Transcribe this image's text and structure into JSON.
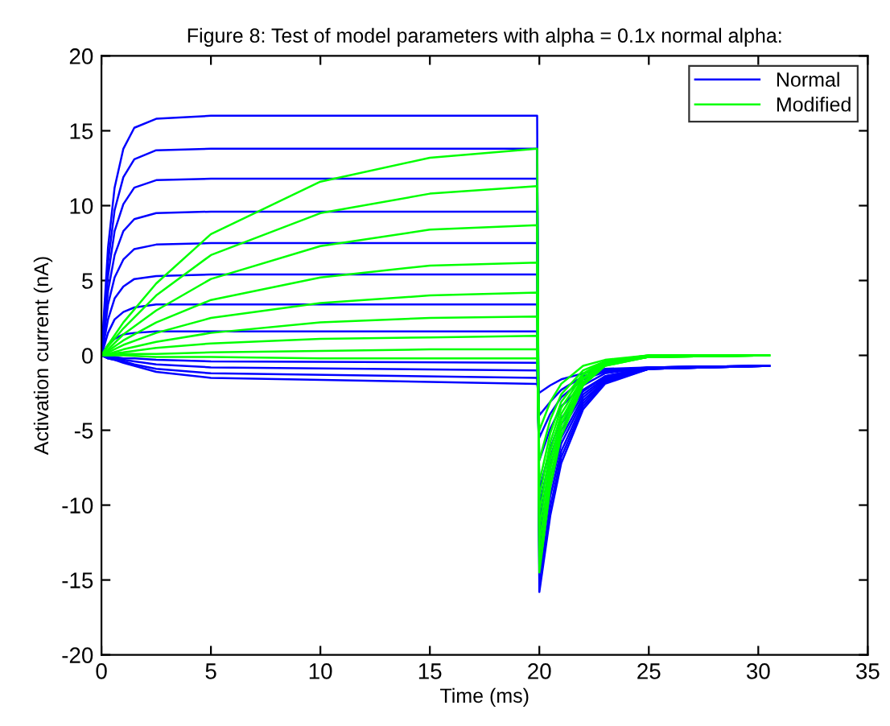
{
  "chart_data": {
    "type": "line",
    "title": "Figure 8: Test of model parameters with alpha = 0.1x normal alpha:",
    "xlabel": "Time (ms)",
    "ylabel": "Activation current (nA)",
    "xlim": [
      0,
      35
    ],
    "ylim": [
      -20,
      20
    ],
    "xticks": [
      0,
      5,
      10,
      15,
      20,
      25,
      30,
      35
    ],
    "yticks": [
      -20,
      -15,
      -10,
      -5,
      0,
      5,
      10,
      15,
      20
    ],
    "legend": "top right",
    "marker": "none",
    "line_style": "solid",
    "x": [
      0,
      0.3,
      0.6,
      1,
      1.5,
      2.5,
      5,
      19.9,
      20,
      20.5,
      21,
      22,
      23,
      25,
      30.5
    ],
    "series": [
      {
        "name": "Normal",
        "color": "#0000ff",
        "values": [
          0,
          7.2,
          11.2,
          13.8,
          15.2,
          15.8,
          16,
          16,
          -15.8,
          -10.7,
          -7.2,
          -3.6,
          -1.9,
          -0.9,
          -0.7
        ]
      },
      {
        "color": "#0000ff",
        "values": [
          0,
          6.2,
          9.7,
          11.9,
          13.1,
          13.7,
          13.8,
          13.8,
          -15,
          -10.1,
          -6.8,
          -3.4,
          -1.8,
          -0.9,
          -0.7
        ]
      },
      {
        "color": "#0000ff",
        "values": [
          0,
          5.3,
          8.3,
          10.1,
          11.2,
          11.7,
          11.8,
          11.8,
          -14,
          -9.4,
          -6.4,
          -3.2,
          -1.7,
          -0.9,
          -0.7
        ]
      },
      {
        "color": "#0000ff",
        "values": [
          0,
          4.3,
          6.7,
          8.3,
          9.1,
          9.5,
          9.6,
          9.6,
          -13,
          -8.8,
          -5.9,
          -3.0,
          -1.7,
          -0.9,
          -0.7
        ]
      },
      {
        "color": "#0000ff",
        "values": [
          0,
          3.4,
          5.2,
          6.4,
          7.1,
          7.4,
          7.5,
          7.5,
          -12,
          -8.1,
          -5.5,
          -2.8,
          -1.6,
          -0.9,
          -0.7
        ]
      },
      {
        "color": "#0000ff",
        "values": [
          0,
          2.4,
          3.8,
          4.6,
          5.1,
          5.3,
          5.4,
          5.4,
          -11,
          -7.4,
          -5.0,
          -2.6,
          -1.5,
          -0.9,
          -0.7
        ]
      },
      {
        "color": "#0000ff",
        "values": [
          0,
          1.5,
          2.4,
          2.9,
          3.2,
          3.4,
          3.4,
          3.4,
          -10,
          -6.8,
          -4.6,
          -2.4,
          -1.4,
          -0.8,
          -0.7
        ]
      },
      {
        "color": "#0000ff",
        "values": [
          0,
          0.7,
          1.1,
          1.4,
          1.5,
          1.6,
          1.6,
          1.6,
          -9,
          -6.2,
          -4.2,
          -2.3,
          -1.4,
          -0.8,
          -0.7
        ]
      },
      {
        "color": "#0000ff",
        "values": [
          0,
          -0.1,
          -0.1,
          -0.2,
          -0.2,
          -0.3,
          -0.4,
          -0.5,
          -7,
          -4.9,
          -3.4,
          -2.0,
          -1.2,
          -0.8,
          -0.7
        ]
      },
      {
        "color": "#0000ff",
        "values": [
          0,
          -0.1,
          -0.2,
          -0.3,
          -0.4,
          -0.6,
          -0.8,
          -1.0,
          -5.5,
          -3.9,
          -2.8,
          -1.6,
          -1.1,
          -0.8,
          -0.7
        ]
      },
      {
        "color": "#0000ff",
        "values": [
          0,
          -0.2,
          -0.3,
          -0.4,
          -0.6,
          -0.9,
          -1.2,
          -1.5,
          -4,
          -3.1,
          -2.3,
          -1.4,
          -1.0,
          -0.8,
          -0.7
        ]
      },
      {
        "color": "#0000ff",
        "values": [
          0,
          -0.2,
          -0.3,
          -0.5,
          -0.7,
          -1.1,
          -1.5,
          -1.9,
          -2.5,
          -2.0,
          -1.6,
          -1.2,
          -0.9,
          -0.8,
          -0.7
        ]
      },
      {
        "name": "Modified",
        "color": "#00ff00",
        "x": [
          0,
          0.3,
          1,
          2.5,
          5,
          10,
          15,
          19.9,
          20,
          20.5,
          21,
          22,
          23,
          25,
          30.5
        ],
        "values": [
          0,
          0.7,
          2.2,
          4.8,
          8.1,
          11.6,
          13.2,
          13.8,
          -14.5,
          -8.8,
          -5.4,
          -2.0,
          -0.7,
          -0.1,
          0
        ]
      },
      {
        "color": "#00ff00",
        "x": [
          0,
          0.3,
          1,
          2.5,
          5,
          10,
          15,
          19.9,
          20,
          20.5,
          21,
          22,
          23,
          25,
          30.5
        ],
        "values": [
          0,
          0.6,
          1.8,
          4.0,
          6.7,
          9.5,
          10.8,
          11.3,
          -13.5,
          -8.2,
          -5.0,
          -1.9,
          -0.7,
          -0.1,
          0
        ]
      },
      {
        "color": "#00ff00",
        "x": [
          0,
          0.3,
          1,
          2.5,
          5,
          10,
          15,
          19.9,
          20,
          20.5,
          21,
          22,
          23,
          25,
          30.5
        ],
        "values": [
          0,
          0.4,
          1.4,
          3.0,
          5.1,
          7.3,
          8.4,
          8.7,
          -12.5,
          -7.6,
          -4.6,
          -1.8,
          -0.6,
          -0.1,
          0
        ]
      },
      {
        "color": "#00ff00",
        "x": [
          0,
          0.3,
          1,
          2.5,
          5,
          10,
          15,
          19.9,
          20,
          20.5,
          21,
          22,
          23,
          25,
          30.5
        ],
        "values": [
          0,
          0.3,
          1.0,
          2.2,
          3.7,
          5.2,
          6.0,
          6.2,
          -11.5,
          -7.0,
          -4.3,
          -1.6,
          -0.6,
          -0.1,
          0
        ]
      },
      {
        "color": "#00ff00",
        "x": [
          0,
          0.3,
          1,
          2.5,
          5,
          10,
          15,
          19.9,
          20,
          20.5,
          21,
          22,
          23,
          25,
          30.5
        ],
        "values": [
          0,
          0.2,
          0.7,
          1.5,
          2.5,
          3.5,
          4.0,
          4.2,
          -10.5,
          -6.4,
          -3.9,
          -1.5,
          -0.5,
          -0.1,
          0
        ]
      },
      {
        "color": "#00ff00",
        "x": [
          0,
          0.3,
          1,
          2.5,
          5,
          10,
          15,
          19.9,
          20,
          20.5,
          21,
          22,
          23,
          25,
          30.5
        ],
        "values": [
          0,
          0.1,
          0.4,
          0.9,
          1.5,
          2.2,
          2.5,
          2.6,
          -9.5,
          -5.8,
          -3.5,
          -1.3,
          -0.5,
          -0.1,
          0
        ]
      },
      {
        "color": "#00ff00",
        "x": [
          0,
          0.3,
          1,
          2.5,
          5,
          10,
          15,
          19.9,
          20,
          20.5,
          21,
          22,
          23,
          25,
          30.5
        ],
        "values": [
          0,
          0.1,
          0.2,
          0.5,
          0.8,
          1.1,
          1.2,
          1.3,
          -8.5,
          -5.2,
          -3.1,
          -1.2,
          -0.4,
          0,
          0
        ]
      },
      {
        "color": "#00ff00",
        "x": [
          0,
          0.3,
          1,
          2.5,
          5,
          10,
          15,
          19.9,
          20,
          20.5,
          21,
          22,
          23,
          25,
          30.5
        ],
        "values": [
          0,
          0,
          0.1,
          0.1,
          0.2,
          0.3,
          0.4,
          0.4,
          -7,
          -4.3,
          -2.6,
          -1.0,
          -0.4,
          0,
          0
        ]
      },
      {
        "color": "#00ff00",
        "x": [
          0,
          0.3,
          1,
          2.5,
          5,
          10,
          15,
          19.9,
          20,
          20.5,
          21,
          22,
          23,
          25,
          30.5
        ],
        "values": [
          0,
          0,
          0,
          -0.1,
          -0.1,
          -0.2,
          -0.2,
          -0.2,
          -5,
          -3.1,
          -1.9,
          -0.7,
          -0.3,
          0,
          0
        ]
      }
    ]
  }
}
